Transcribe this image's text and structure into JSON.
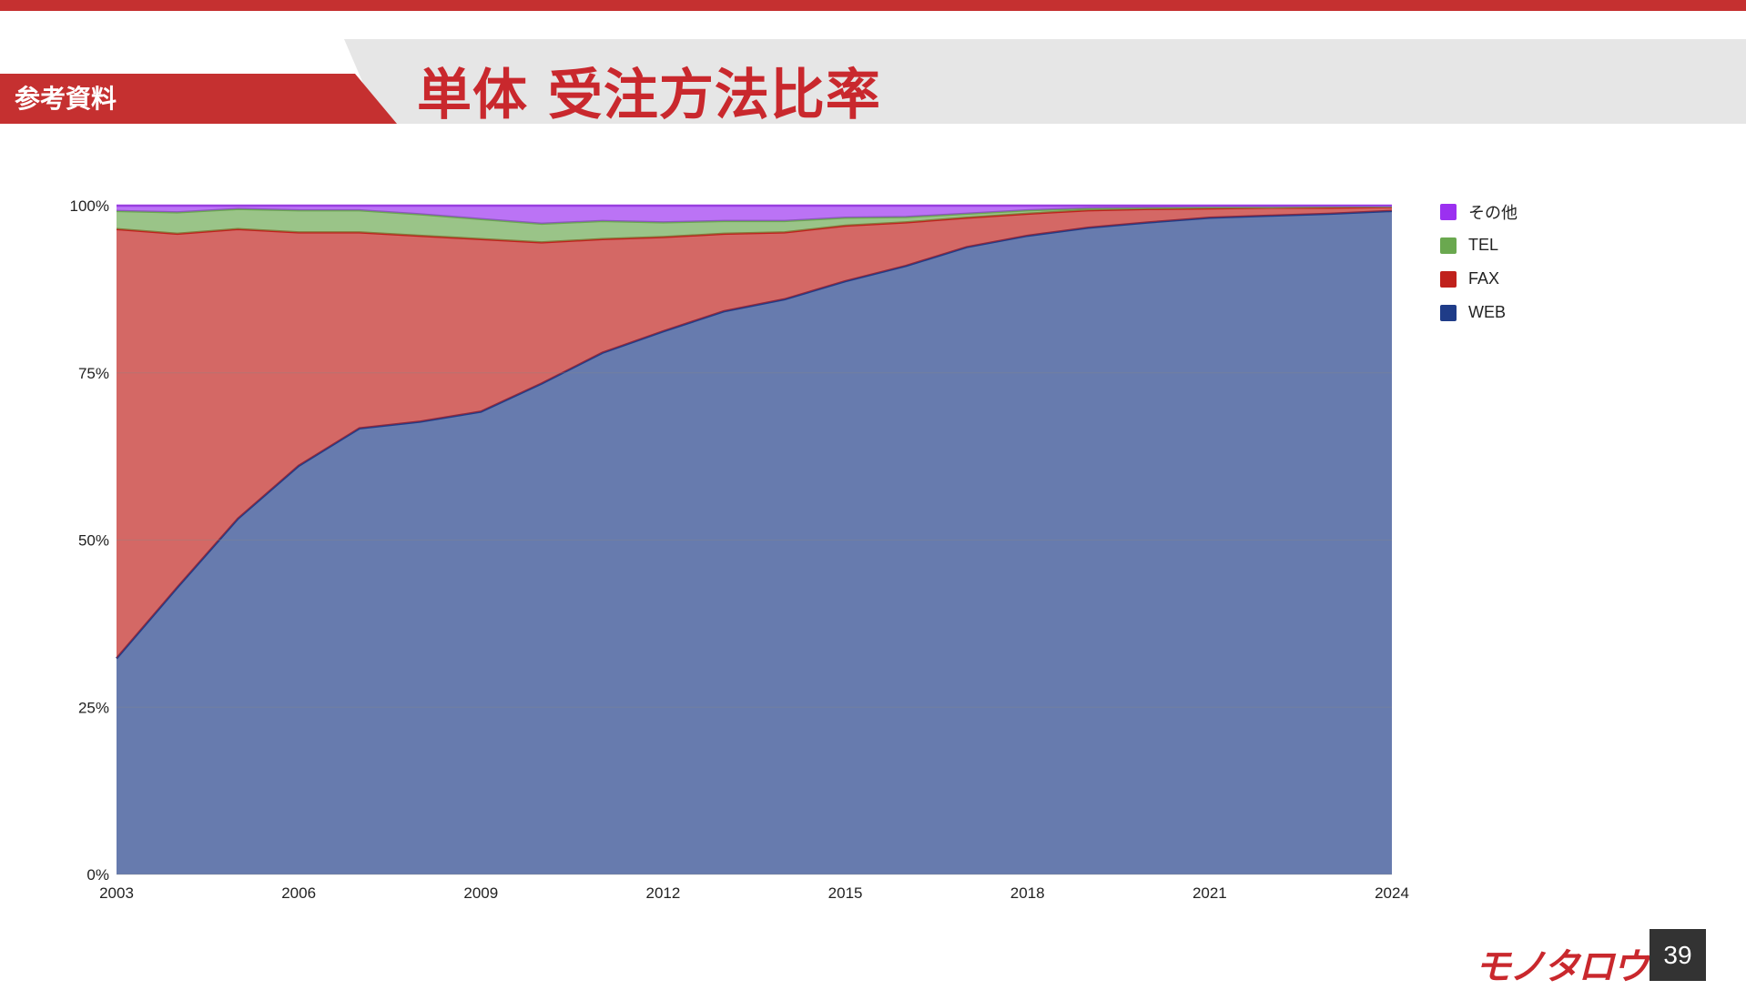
{
  "header": {
    "section_label": "参考資料",
    "title": "単体 受注方法比率"
  },
  "footer": {
    "logo_text": "モノタロウ",
    "page_number": "39"
  },
  "chart_data": {
    "type": "area",
    "stacked": true,
    "percent": true,
    "x": [
      2003,
      2004,
      2005,
      2006,
      2007,
      2008,
      2009,
      2010,
      2011,
      2012,
      2013,
      2014,
      2015,
      2016,
      2017,
      2018,
      2019,
      2020,
      2021,
      2022,
      2023,
      2024
    ],
    "x_ticks": [
      "2003",
      "2006",
      "2009",
      "2012",
      "2015",
      "2018",
      "2021",
      "2024"
    ],
    "y_ticks": [
      "0%",
      "25%",
      "50%",
      "75%",
      "100%"
    ],
    "ylim": [
      0,
      100
    ],
    "grid": true,
    "legend_position": "right",
    "series": [
      {
        "name": "WEB",
        "color": "#1f3c88",
        "values": [
          32.3,
          42.9,
          53.2,
          61.1,
          66.7,
          67.7,
          69.2,
          73.4,
          78.0,
          81.2,
          84.2,
          86.0,
          88.7,
          91.0,
          93.8,
          95.5,
          96.7,
          97.5,
          98.2,
          98.5,
          98.8,
          99.2
        ]
      },
      {
        "name": "FAX",
        "color": "#c0211c",
        "values": [
          64.2,
          52.9,
          43.3,
          34.9,
          29.3,
          27.8,
          25.8,
          21.1,
          17.0,
          14.1,
          11.6,
          10.0,
          8.3,
          6.5,
          4.4,
          3.3,
          2.6,
          2.0,
          1.4,
          1.2,
          0.9,
          0.6
        ]
      },
      {
        "name": "TEL",
        "color": "#6aa84f",
        "values": [
          2.7,
          3.2,
          3.0,
          3.3,
          3.3,
          3.2,
          3.0,
          2.8,
          2.7,
          2.2,
          1.9,
          1.7,
          1.2,
          0.8,
          0.6,
          0.5,
          0.3,
          0.2,
          0.2,
          0.1,
          0.2,
          0.1
        ]
      },
      {
        "name": "その他",
        "color": "#9b30f0",
        "values": [
          0.8,
          1.0,
          0.5,
          0.7,
          0.7,
          1.3,
          2.0,
          2.7,
          2.3,
          2.5,
          2.3,
          2.3,
          1.8,
          1.7,
          1.2,
          0.7,
          0.4,
          0.3,
          0.2,
          0.2,
          0.1,
          0.1
        ]
      }
    ],
    "legend_order": [
      "その他",
      "TEL",
      "FAX",
      "WEB"
    ]
  }
}
